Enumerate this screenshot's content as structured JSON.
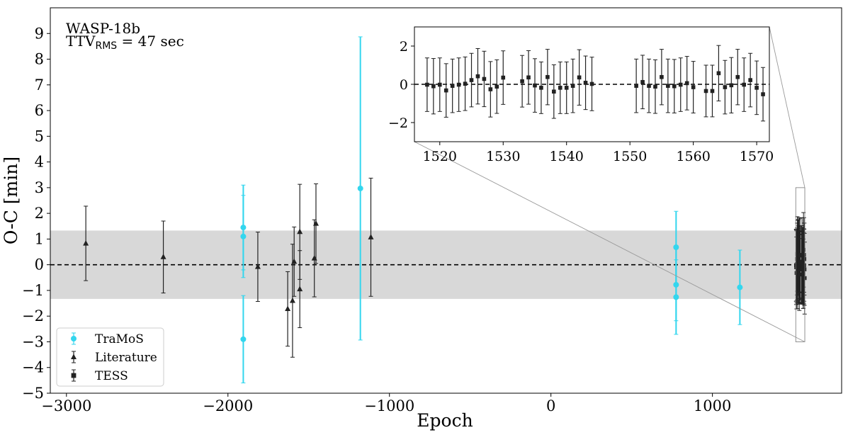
{
  "chart_data": [
    {
      "type": "scatter",
      "xlabel": "Epoch",
      "ylabel": "O-C [min]",
      "xlim": [
        -3100,
        1800
      ],
      "ylim": [
        -5,
        10
      ],
      "xticks": [
        -3000,
        -2000,
        -1000,
        0,
        1000
      ],
      "xtick_labels": [
        "−3000",
        "−2000",
        "−1000",
        "0",
        "1000"
      ],
      "yticks": [
        -5,
        -4,
        -3,
        -2,
        -1,
        0,
        1,
        2,
        3,
        4,
        5,
        6,
        7,
        8,
        9
      ],
      "ytick_labels": [
        "−5",
        "−4",
        "−3",
        "−2",
        "−1",
        "0",
        "1",
        "2",
        "3",
        "4",
        "5",
        "6",
        "7",
        "8",
        "9"
      ],
      "annotations": {
        "planet": "WASP-18b",
        "ttv_prefix": "TTV",
        "ttv_sub": "RMS",
        "ttv_value": " = 47 sec"
      },
      "rms_band": [
        -1.33,
        1.33
      ],
      "zero_line": 0,
      "legend": {
        "placement": "lower-left",
        "entries": [
          "TraMoS",
          "Literature",
          "TESS"
        ]
      },
      "colors": {
        "TraMoS": "#33d6ee",
        "Literature": "#222222",
        "TESS": "#222222",
        "band": "#d8d8d8"
      },
      "series": [
        {
          "name": "TraMoS",
          "marker": "circle",
          "points": [
            {
              "x": -1905,
              "y": 1.45,
              "err": 1.65
            },
            {
              "x": -1905,
              "y": 1.1,
              "err": 1.6
            },
            {
              "x": -1905,
              "y": -2.9,
              "err": 1.7
            },
            {
              "x": -1180,
              "y": 2.97,
              "err": 5.9
            },
            {
              "x": 775,
              "y": 0.68,
              "err": 1.4
            },
            {
              "x": 775,
              "y": -0.78,
              "err": 1.4
            },
            {
              "x": 775,
              "y": -1.26,
              "err": 1.45
            },
            {
              "x": 1170,
              "y": -0.88,
              "err": 1.45
            }
          ]
        },
        {
          "name": "Literature",
          "marker": "triangle",
          "points": [
            {
              "x": -2880,
              "y": 0.83,
              "err": 1.45
            },
            {
              "x": -2400,
              "y": 0.3,
              "err": 1.4
            },
            {
              "x": -1815,
              "y": -0.08,
              "err": 1.35
            },
            {
              "x": -1630,
              "y": -1.72,
              "err": 1.45
            },
            {
              "x": -1600,
              "y": -1.4,
              "err": 2.2
            },
            {
              "x": -1590,
              "y": 0.12,
              "err": 1.35
            },
            {
              "x": -1555,
              "y": 1.28,
              "err": 1.85
            },
            {
              "x": -1555,
              "y": -0.95,
              "err": 1.5
            },
            {
              "x": -1465,
              "y": 0.25,
              "err": 1.5
            },
            {
              "x": -1455,
              "y": 1.6,
              "err": 1.55
            },
            {
              "x": -1115,
              "y": 1.07,
              "err": 2.3
            }
          ]
        },
        {
          "name": "TESS",
          "marker": "square",
          "points": [
            {
              "x": 1518,
              "y": -0.02,
              "err": 1.4
            },
            {
              "x": 1519,
              "y": -0.1,
              "err": 1.45
            },
            {
              "x": 1520,
              "y": -0.02,
              "err": 1.4
            },
            {
              "x": 1521,
              "y": -0.32,
              "err": 1.4
            },
            {
              "x": 1522,
              "y": -0.08,
              "err": 1.4
            },
            {
              "x": 1523,
              "y": -0.02,
              "err": 1.4
            },
            {
              "x": 1524,
              "y": 0.03,
              "err": 1.4
            },
            {
              "x": 1525,
              "y": 0.22,
              "err": 1.4
            },
            {
              "x": 1526,
              "y": 0.42,
              "err": 1.45
            },
            {
              "x": 1527,
              "y": 0.28,
              "err": 1.45
            },
            {
              "x": 1528,
              "y": -0.26,
              "err": 1.45
            },
            {
              "x": 1529,
              "y": -0.12,
              "err": 1.4
            },
            {
              "x": 1530,
              "y": 0.35,
              "err": 1.4
            },
            {
              "x": 1533,
              "y": 0.16,
              "err": 1.35
            },
            {
              "x": 1534,
              "y": 0.36,
              "err": 1.4
            },
            {
              "x": 1535,
              "y": -0.06,
              "err": 1.4
            },
            {
              "x": 1536,
              "y": -0.18,
              "err": 1.35
            },
            {
              "x": 1537,
              "y": 0.38,
              "err": 1.45
            },
            {
              "x": 1538,
              "y": -0.38,
              "err": 1.4
            },
            {
              "x": 1539,
              "y": -0.18,
              "err": 1.35
            },
            {
              "x": 1540,
              "y": -0.18,
              "err": 1.35
            },
            {
              "x": 1541,
              "y": -0.08,
              "err": 1.4
            },
            {
              "x": 1542,
              "y": 0.36,
              "err": 1.45
            },
            {
              "x": 1543,
              "y": 0.08,
              "err": 1.4
            },
            {
              "x": 1544,
              "y": 0.02,
              "err": 1.4
            },
            {
              "x": 1551,
              "y": -0.08,
              "err": 1.4
            },
            {
              "x": 1552,
              "y": 0.12,
              "err": 1.4
            },
            {
              "x": 1553,
              "y": -0.08,
              "err": 1.4
            },
            {
              "x": 1554,
              "y": -0.12,
              "err": 1.4
            },
            {
              "x": 1555,
              "y": 0.38,
              "err": 1.45
            },
            {
              "x": 1556,
              "y": -0.08,
              "err": 1.4
            },
            {
              "x": 1557,
              "y": -0.1,
              "err": 1.4
            },
            {
              "x": 1558,
              "y": -0.02,
              "err": 1.4
            },
            {
              "x": 1559,
              "y": 0.06,
              "err": 1.4
            },
            {
              "x": 1560,
              "y": -0.15,
              "err": 1.35
            },
            {
              "x": 1562,
              "y": -0.35,
              "err": 1.35
            },
            {
              "x": 1563,
              "y": -0.35,
              "err": 1.35
            },
            {
              "x": 1564,
              "y": 0.58,
              "err": 1.45
            },
            {
              "x": 1565,
              "y": -0.15,
              "err": 1.4
            },
            {
              "x": 1566,
              "y": -0.05,
              "err": 1.45
            },
            {
              "x": 1567,
              "y": 0.38,
              "err": 1.45
            },
            {
              "x": 1568,
              "y": -0.02,
              "err": 1.4
            },
            {
              "x": 1569,
              "y": 0.22,
              "err": 1.4
            },
            {
              "x": 1570,
              "y": -0.18,
              "err": 1.4
            },
            {
              "x": 1571,
              "y": -0.52,
              "err": 1.4
            }
          ]
        }
      ]
    },
    {
      "type": "scatter",
      "role": "inset",
      "xlim": [
        1516,
        1572
      ],
      "ylim": [
        -3,
        3
      ],
      "xticks": [
        1520,
        1530,
        1540,
        1550,
        1560,
        1570
      ],
      "xtick_labels": [
        "1520",
        "1530",
        "1540",
        "1550",
        "1560",
        "1570"
      ],
      "yticks": [
        -2,
        0,
        2
      ],
      "ytick_labels": [
        "−2",
        "0",
        "2"
      ],
      "zoom_region": {
        "x": [
          1516,
          1572
        ],
        "y": [
          -3,
          3
        ]
      },
      "series_ref": "TESS"
    }
  ]
}
